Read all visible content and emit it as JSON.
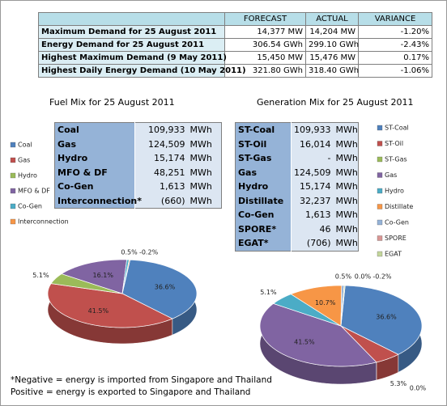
{
  "summary_table": {
    "header": [
      "FORECAST",
      "ACTUAL",
      "VARIANCE"
    ],
    "rows": [
      [
        "Maximum Demand for 25 August 2011",
        "14,377 MW",
        "14,204 MW",
        "-1.20%"
      ],
      [
        "Energy Demand for 25 August 2011",
        "306.54 GWh",
        "299.10 GWh",
        "-2.43%"
      ],
      [
        "Highest Maximum Demand (9 May 2011)",
        "15,450 MW",
        "15,476 MW",
        "0.17%"
      ],
      [
        "Highest Daily Energy Demand (10 May 2011)",
        "321.80 GWh",
        "318.40 GWh",
        "-1.06%"
      ]
    ]
  },
  "fuel_mix": {
    "title": "Fuel Mix for 25 August 2011",
    "table": [
      [
        "Coal",
        "109,933",
        "MWh"
      ],
      [
        "Gas",
        "124,509",
        "MWh"
      ],
      [
        "Hydro",
        "15,174",
        "MWh"
      ],
      [
        "MFO & DF",
        "48,251",
        "MWh"
      ],
      [
        "Co-Gen",
        "1,613",
        "MWh"
      ],
      [
        "Interconnection*",
        "(660)",
        "MWh"
      ]
    ]
  },
  "generation_mix": {
    "title": "Generation Mix for 25 August 2011",
    "table": [
      [
        "ST-Coal",
        "109,933",
        "MWh"
      ],
      [
        "ST-Oil",
        "16,014",
        "MWh"
      ],
      [
        "ST-Gas",
        "-",
        "MWh"
      ],
      [
        "Gas",
        "124,509",
        "MWh"
      ],
      [
        "Hydro",
        "15,174",
        "MWh"
      ],
      [
        "Distillate",
        "32,237",
        "MWh"
      ],
      [
        "Co-Gen",
        "1,613",
        "MWh"
      ],
      [
        "SPORE*",
        "46",
        "MWh"
      ],
      [
        "EGAT*",
        "(706)",
        "MWh"
      ]
    ]
  },
  "chart_data": [
    {
      "type": "pie",
      "categories": [
        "Coal",
        "Gas",
        "Hydro",
        "MFO & DF",
        "Co-Gen",
        "Interconnection"
      ],
      "values": [
        36.6,
        41.5,
        5.1,
        16.1,
        0.5,
        -0.2
      ],
      "value_labels": [
        "36.6%",
        "41.5%",
        "5.1%",
        "16.1%",
        "0.5%",
        "-0.2%"
      ],
      "colors": [
        "#4f81bd",
        "#c0504d",
        "#9bbb59",
        "#8064a2",
        "#4bacc6",
        "#f79646"
      ]
    },
    {
      "type": "pie",
      "categories": [
        "ST-Coal",
        "ST-Oil",
        "ST-Gas",
        "Gas",
        "Hydro",
        "Distillate",
        "Co-Gen",
        "SPORE",
        "EGAT"
      ],
      "values": [
        36.6,
        5.3,
        0.0,
        41.5,
        5.1,
        10.7,
        0.5,
        0.0,
        -0.2
      ],
      "value_labels": [
        "36.6%",
        "5.3%",
        "0.0%",
        "41.5%",
        "5.1%",
        "10.7%",
        "0.5%",
        "0.0%",
        "-0.2%"
      ],
      "colors": [
        "#4f81bd",
        "#c0504d",
        "#9bbb59",
        "#8064a2",
        "#4bacc6",
        "#f79646",
        "#95b3d7",
        "#d99694",
        "#c3d69b"
      ]
    }
  ],
  "notes": [
    "*Negative = energy is imported from Singapore and Thailand",
    "Positive = energy is exported to Singapore and Thailand"
  ]
}
